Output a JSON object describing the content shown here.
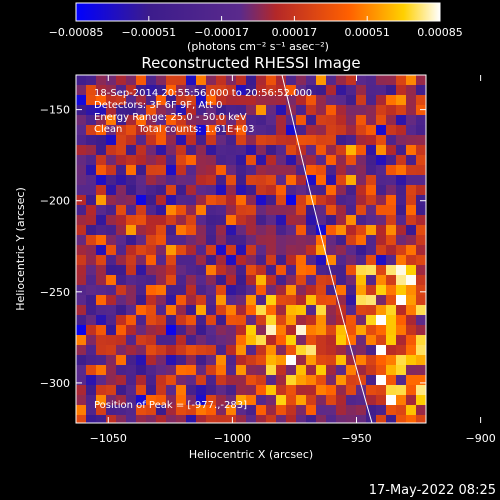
{
  "chart_data": {
    "type": "heatmap",
    "title": "Reconstructed RHESSI Image",
    "xlabel": "Heliocentric X (arcsec)",
    "ylabel": "Heliocentric Y (arcsec)",
    "xlim": [
      -1063,
      -922
    ],
    "ylim": [
      -322,
      -131
    ],
    "xticks": [
      -1050,
      -1000,
      -950,
      -900
    ],
    "xtick_labels": [
      "−1050",
      "−1000",
      "−950",
      "−900"
    ],
    "yticks": [
      -150,
      -200,
      -250,
      -300
    ],
    "ytick_labels": [
      "−150",
      "−200",
      "−250",
      "−300"
    ],
    "colorbar": {
      "range": [
        -0.00085,
        0.00085
      ],
      "ticks": [
        -0.00085,
        -0.00051,
        -0.00017,
        0.00017,
        0.00051,
        0.00085
      ],
      "tick_labels": [
        "−0.00085",
        "−0.00051",
        "−0.00017",
        "0.00017",
        "0.00051",
        "0.00085"
      ],
      "unit_label": "(photons cm⁻² s⁻¹ asec⁻²)",
      "colormap": [
        "#0000ff",
        "#3c1c8c",
        "#5a2a8c",
        "#b42828",
        "#ff6000",
        "#ffd000",
        "#ffffff"
      ]
    },
    "annotations": [
      "18-Sep-2014 20:55:56.000 to 20:56:52.000",
      "Detectors: 3F 6F 9F, Att 0",
      "Energy Range: 25.0 - 50.0 keV",
      "Clean     Total counts: 1.61E+03",
      "Position of Peak = [-977.,-283]"
    ],
    "limb_color": "#ffffff"
  },
  "footer": {
    "timestamp": "17-May-2022 08:25"
  }
}
